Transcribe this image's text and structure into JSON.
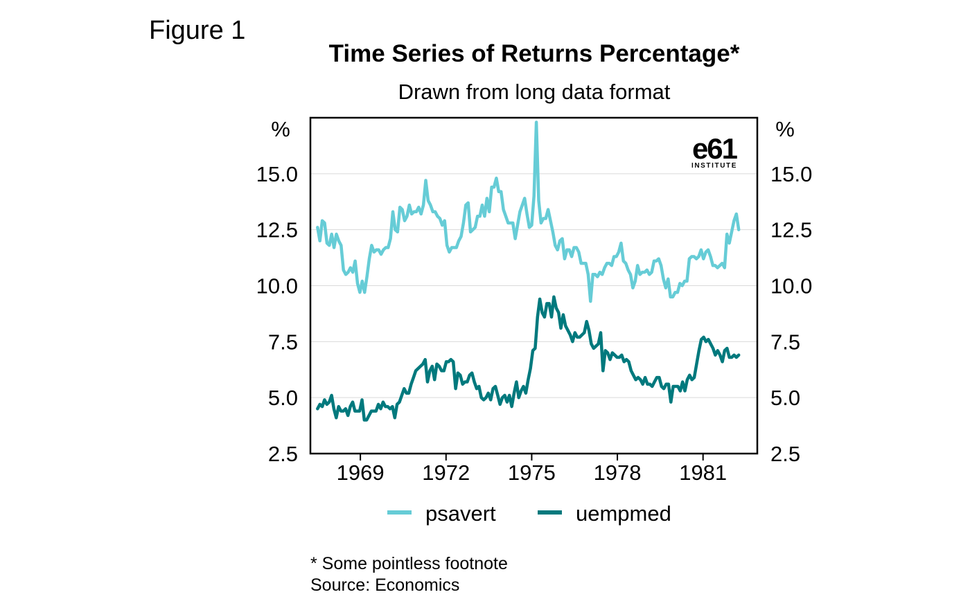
{
  "figure_label": "Figure 1",
  "logo": {
    "mark": "e61",
    "subtext": "INSTITUTE"
  },
  "footnote": "* Some pointless footnote",
  "source": "Source: Economics",
  "colors": {
    "psavert": "#66CCD6",
    "uempmed": "#00797D",
    "grid": "#D9D9D9",
    "axis": "#000000"
  },
  "chart_data": {
    "type": "line",
    "title": "Time Series of Returns Percentage*",
    "subtitle": "Drawn from long data format",
    "xlabel": "",
    "ylabel_left": "%",
    "ylabel_right": "%",
    "ylim": [
      2.5,
      17.5
    ],
    "xlim": [
      1967.25,
      1982.9
    ],
    "x_ticks": [
      1969,
      1972,
      1975,
      1978,
      1981
    ],
    "y_ticks": [
      2.5,
      5.0,
      7.5,
      10.0,
      12.5,
      15.0
    ],
    "y_tick_labels": [
      "2.5",
      "5.0",
      "7.5",
      "10.0",
      "12.5",
      "15.0"
    ],
    "grid": "horizontal",
    "legend_position": "bottom",
    "x_start": 1967.5,
    "x_end": 1982.25,
    "series": [
      {
        "name": "psavert",
        "color": "#66CCD6",
        "values": [
          12.6,
          12.0,
          12.9,
          12.8,
          11.9,
          11.8,
          12.3,
          11.7,
          12.3,
          12.0,
          11.8,
          10.7,
          10.5,
          10.6,
          10.8,
          10.6,
          11.1,
          10.1,
          9.7,
          10.2,
          9.7,
          10.4,
          11.2,
          11.8,
          11.5,
          11.6,
          11.6,
          11.4,
          11.6,
          11.7,
          11.7,
          12.1,
          13.3,
          12.5,
          12.4,
          13.5,
          13.4,
          12.9,
          13.1,
          13.6,
          13.2,
          13.3,
          13.3,
          13.5,
          13.2,
          13.6,
          14.7,
          13.8,
          13.6,
          13.3,
          13.3,
          13.1,
          13.0,
          12.7,
          12.9,
          11.8,
          11.5,
          11.7,
          11.7,
          11.7,
          12.0,
          12.2,
          12.8,
          13.6,
          13.7,
          12.4,
          12.5,
          12.6,
          13.1,
          13.1,
          13.6,
          13.1,
          13.9,
          13.3,
          14.4,
          14.4,
          14.8,
          14.2,
          14.2,
          13.4,
          13.1,
          12.8,
          12.8,
          12.8,
          12.1,
          12.7,
          13.3,
          13.6,
          13.9,
          13.2,
          12.6,
          12.7,
          14.0,
          17.3,
          13.8,
          12.8,
          13.0,
          13.0,
          13.4,
          12.9,
          12.4,
          11.8,
          11.6,
          12.0,
          12.1,
          11.2,
          11.6,
          11.6,
          11.3,
          11.7,
          11.7,
          11.5,
          11.0,
          11.0,
          11.0,
          10.5,
          9.3,
          10.5,
          10.5,
          10.4,
          10.6,
          10.5,
          10.8,
          11.0,
          11.0,
          10.9,
          11.3,
          11.3,
          11.5,
          11.9,
          11.1,
          11.0,
          10.7,
          10.5,
          9.9,
          10.2,
          10.9,
          10.5,
          10.6,
          10.6,
          10.7,
          10.5,
          10.6,
          11.1,
          11.1,
          11.2,
          10.9,
          10.3,
          9.9,
          10.3,
          9.5,
          9.5,
          9.7,
          9.7,
          10.1,
          10.0,
          10.2,
          10.2,
          11.2,
          11.3,
          11.3,
          11.2,
          11.3,
          11.6,
          11.2,
          11.5,
          11.6,
          11.3,
          10.9,
          10.9,
          10.8,
          10.9,
          11.0,
          10.8,
          12.3,
          11.9,
          12.4,
          12.9,
          13.2,
          12.5
        ]
      },
      {
        "name": "uempmed",
        "color": "#00797D",
        "values": [
          4.5,
          4.7,
          4.6,
          4.9,
          4.7,
          4.8,
          5.1,
          4.5,
          4.1,
          4.6,
          4.4,
          4.4,
          4.5,
          4.2,
          4.6,
          4.8,
          4.4,
          4.4,
          4.4,
          4.9,
          4.0,
          4.0,
          4.2,
          4.4,
          4.4,
          4.4,
          4.7,
          4.5,
          4.8,
          4.6,
          4.6,
          4.5,
          4.6,
          4.1,
          4.7,
          4.8,
          5.1,
          5.4,
          5.2,
          5.2,
          5.6,
          5.9,
          6.2,
          6.3,
          6.4,
          6.5,
          6.7,
          5.7,
          6.2,
          6.4,
          5.8,
          6.5,
          6.4,
          6.2,
          6.2,
          6.6,
          6.6,
          6.7,
          6.6,
          5.4,
          6.1,
          6.0,
          5.6,
          5.7,
          5.7,
          6.0,
          6.1,
          5.7,
          5.4,
          5.5,
          5.0,
          4.9,
          5.0,
          5.2,
          4.9,
          5.4,
          5.5,
          5.1,
          4.7,
          5.0,
          5.1,
          4.8,
          5.1,
          4.6,
          5.2,
          5.7,
          5.0,
          5.3,
          5.5,
          5.2,
          5.8,
          6.3,
          7.1,
          7.2,
          8.6,
          9.4,
          8.8,
          8.6,
          9.2,
          9.2,
          8.6,
          9.5,
          9.0,
          8.8,
          8.1,
          8.7,
          8.2,
          8.0,
          7.8,
          7.5,
          7.9,
          7.7,
          7.7,
          7.8,
          7.9,
          8.4,
          8.0,
          7.4,
          7.2,
          7.3,
          7.4,
          7.9,
          6.2,
          7.1,
          7.0,
          6.7,
          7.0,
          6.9,
          6.8,
          6.8,
          6.9,
          6.6,
          6.7,
          6.6,
          6.2,
          6.0,
          5.8,
          5.9,
          5.8,
          5.6,
          5.9,
          5.6,
          5.6,
          5.5,
          5.7,
          5.9,
          5.9,
          5.5,
          5.4,
          5.6,
          5.6,
          4.8,
          5.5,
          5.5,
          5.5,
          5.3,
          5.7,
          5.3,
          5.8,
          6.0,
          5.8,
          5.9,
          6.5,
          7.1,
          7.6,
          7.7,
          7.5,
          7.6,
          7.4,
          7.2,
          6.9,
          7.1,
          6.9,
          6.6,
          7.1,
          7.2,
          6.8,
          6.8,
          6.9,
          6.8,
          6.9
        ]
      }
    ]
  }
}
